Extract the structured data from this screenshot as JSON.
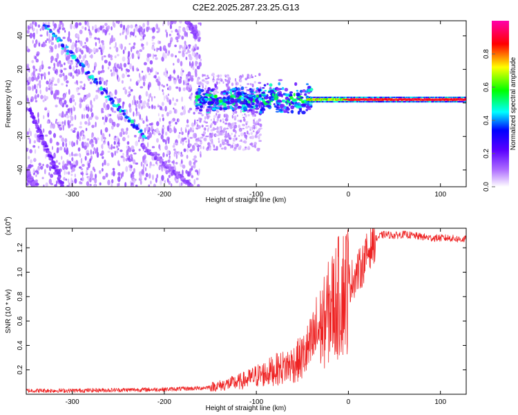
{
  "title": "C2E2.2025.287.23.25.G13",
  "chart_data": [
    {
      "type": "heatmap",
      "xlabel": "Height of straight line (km)",
      "ylabel": "Frequency (Hz)",
      "xlim": [
        -350,
        128
      ],
      "ylim": [
        -50,
        49
      ],
      "xticks": [
        -300,
        -200,
        -100,
        0,
        100
      ],
      "yticks": [
        -40,
        -20,
        0,
        20,
        40
      ],
      "colorbar": {
        "label": "Normalized spectral amplitude",
        "range": [
          0,
          1
        ],
        "ticks": [
          0.0,
          0.2,
          0.4,
          0.6,
          0.8
        ],
        "tick_labels": [
          "0.0",
          "0.2",
          "0.4",
          "0.6",
          "0.8"
        ],
        "colormap": [
          "#ffffff",
          "#7f00ff",
          "#0000ff",
          "#00ffff",
          "#00ff00",
          "#ffff00",
          "#ff0000",
          "#ff00ff"
        ]
      },
      "features": [
        {
          "name": "main signal",
          "from_km": -170,
          "to_km": 128,
          "freq_hz": 2,
          "peak_amplitude": 0.95
        },
        {
          "name": "diagonal streak A",
          "from": [
            -330,
            47
          ],
          "to": [
            -220,
            -21
          ],
          "peak_amplitude": 0.45
        },
        {
          "name": "diagonal streak B",
          "from": [
            -345,
            -5
          ],
          "to": [
            -310,
            -50
          ],
          "peak_amplitude": 0.2
        },
        {
          "name": "diagonal streak C",
          "from": [
            -225,
            -25
          ],
          "to": [
            -170,
            -50
          ],
          "peak_amplitude": 0.15
        },
        {
          "name": "diagonal streak D",
          "from": [
            -350,
            -42
          ],
          "to": [
            -340,
            -50
          ],
          "peak_amplitude": 0.15
        },
        {
          "name": "upper streak",
          "from": [
            -175,
            49
          ],
          "to": [
            -165,
            40
          ],
          "peak_amplitude": 0.15
        }
      ]
    },
    {
      "type": "line",
      "xlabel": "Height of straight line (km)",
      "ylabel": "SNR (10 * v/v)",
      "exponent_label": "(x10",
      "exponent_power": "4",
      "exponent_close": ")",
      "xlim": [
        -350,
        128
      ],
      "ylim": [
        0,
        1.36
      ],
      "xticks": [
        -300,
        -200,
        -100,
        0,
        100
      ],
      "yticks": [
        0.2,
        0.4,
        0.6,
        0.8,
        1.0,
        1.2
      ],
      "ytick_labels": [
        "0.2",
        "0.4",
        "0.6",
        "0.8",
        "1.0",
        "1.2"
      ],
      "series": [
        {
          "color": "#ee2222",
          "x": [
            -350,
            -300,
            -250,
            -200,
            -160,
            -140,
            -120,
            -110,
            -100,
            -90,
            -80,
            -70,
            -60,
            -50,
            -45,
            -40,
            -35,
            -30,
            -25,
            -20,
            -15,
            -10,
            -5,
            0,
            5,
            10,
            15,
            20,
            25,
            30,
            35,
            40,
            50,
            60,
            70,
            80,
            90,
            100,
            110,
            120,
            128
          ],
          "y": [
            0.03,
            0.03,
            0.035,
            0.04,
            0.05,
            0.07,
            0.1,
            0.12,
            0.15,
            0.17,
            0.2,
            0.22,
            0.25,
            0.3,
            0.35,
            0.4,
            0.5,
            0.55,
            0.6,
            0.7,
            0.75,
            0.8,
            0.85,
            0.9,
            0.95,
            1.0,
            1.05,
            1.15,
            1.22,
            1.27,
            1.3,
            1.31,
            1.3,
            1.31,
            1.3,
            1.29,
            1.28,
            1.28,
            1.28,
            1.27,
            1.27
          ]
        }
      ]
    }
  ]
}
